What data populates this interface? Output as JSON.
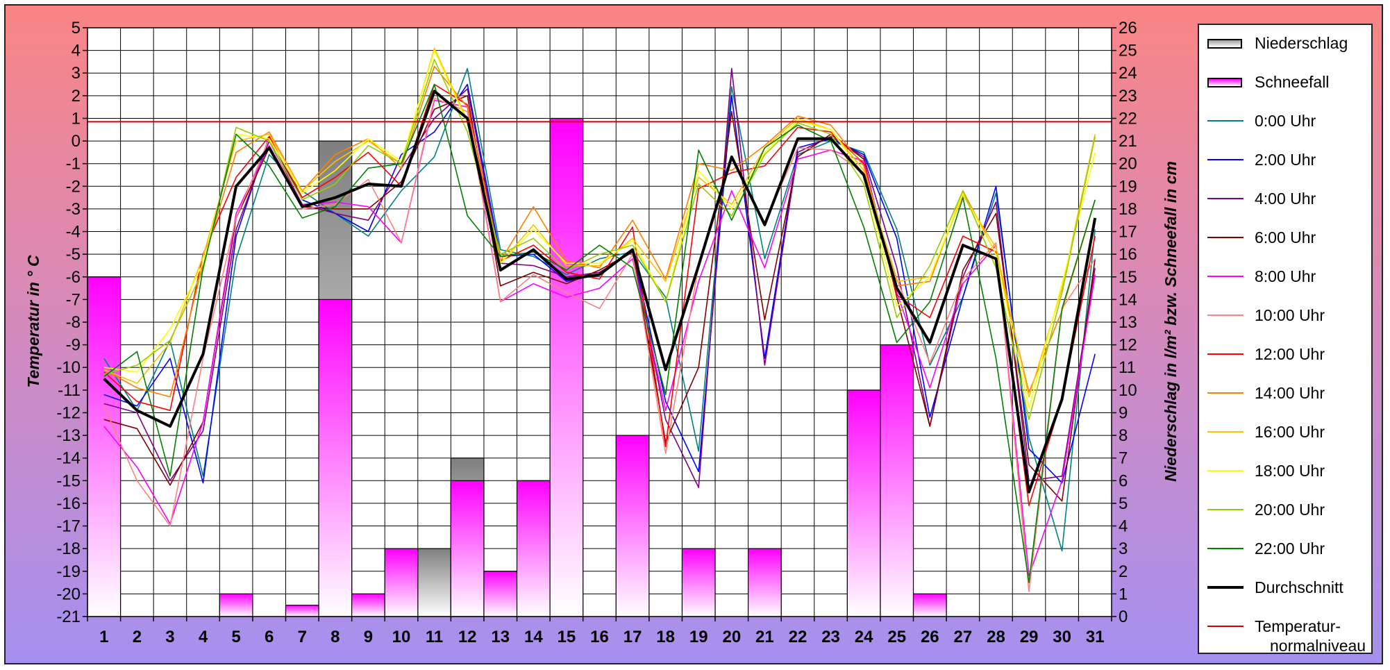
{
  "chart_data": {
    "type": "bar+line",
    "xlabel": "",
    "x": [
      1,
      2,
      3,
      4,
      5,
      6,
      7,
      8,
      9,
      10,
      11,
      12,
      13,
      14,
      15,
      16,
      17,
      18,
      19,
      20,
      21,
      22,
      23,
      24,
      25,
      26,
      27,
      28,
      29,
      30,
      31
    ],
    "x_tick_labels": [
      "1",
      "2",
      "3",
      "4",
      "5",
      "6",
      "7",
      "8",
      "9",
      "10",
      "11",
      "12",
      "13",
      "14",
      "15",
      "16",
      "17",
      "18",
      "19",
      "20",
      "21",
      "22",
      "23",
      "24",
      "25",
      "26",
      "27",
      "28",
      "29",
      "30",
      "31"
    ],
    "y_left": {
      "label": "Temperatur in ° C",
      "lim": [
        -21,
        5
      ],
      "tick_labels": [
        "5",
        "4",
        "3",
        "2",
        "1",
        "0",
        "-1",
        "-2",
        "-3",
        "-4",
        "-5",
        "-6",
        "-7",
        "-8",
        "-9",
        "-10",
        "-11",
        "-12",
        "-13",
        "-14",
        "-15",
        "-16",
        "-17",
        "-18",
        "-19",
        "-20",
        "-21"
      ]
    },
    "y_right": {
      "label": "Niederschlag in l/m² bzw. Schneefall in cm",
      "lim": [
        0,
        26
      ],
      "tick_labels": [
        "26",
        "25",
        "24",
        "23",
        "22",
        "21",
        "20",
        "19",
        "18",
        "17",
        "16",
        "15",
        "14",
        "13",
        "12",
        "11",
        "10",
        "9",
        "8",
        "7",
        "6",
        "5",
        "4",
        "3",
        "2",
        "1",
        "0"
      ]
    },
    "grid": true,
    "legend_position": "right",
    "bars": [
      {
        "name": "Niederschlag",
        "axis": "right",
        "color_top": "#7f7f7f",
        "color_bottom": "#ffffff",
        "values": [
          15,
          0,
          0,
          0,
          1,
          0,
          0.5,
          21,
          1,
          3,
          3,
          7,
          2,
          6,
          22,
          0,
          8,
          0,
          3,
          0,
          3,
          0,
          0,
          10,
          12,
          1,
          0,
          0,
          0,
          0,
          0
        ]
      },
      {
        "name": "Schneefall",
        "axis": "right",
        "color_top": "#ff00ff",
        "color_bottom": "#ffffff",
        "values": [
          15,
          0,
          0,
          0,
          1,
          0,
          0.5,
          14,
          1,
          3,
          0,
          6,
          2,
          6,
          22,
          0,
          8,
          0,
          3,
          0,
          3,
          0,
          0,
          10,
          12,
          1,
          0,
          0,
          0,
          0,
          0
        ]
      }
    ],
    "series": [
      {
        "name": "0:00 Uhr",
        "color": "#008080",
        "width": 1.6,
        "values": [
          -9.6,
          -11.9,
          -8.8,
          -14.8,
          -5.2,
          -0.6,
          -2.2,
          -3.2,
          -4.2,
          -2.2,
          -0.7,
          3.2,
          -4.8,
          -5.1,
          -5.9,
          -5.2,
          -4.9,
          -6.9,
          -13.7,
          2.4,
          -5.2,
          -0.6,
          0.0,
          -0.5,
          -3.9,
          -9.9,
          -6.9,
          -2.3,
          -13.1,
          -18.1,
          -3.9
        ]
      },
      {
        "name": "2:00 Uhr",
        "color": "#0000ff",
        "width": 1.6,
        "values": [
          -11.2,
          -11.7,
          -9.6,
          -15.1,
          -4.2,
          0.2,
          -2.6,
          -3.2,
          -4.0,
          -0.6,
          0.4,
          2.5,
          -5.1,
          -5.0,
          -6.2,
          -5.9,
          -4.8,
          -11.5,
          -14.6,
          2.0,
          -9.6,
          -0.3,
          0.1,
          -0.6,
          -4.3,
          -12.2,
          -6.9,
          -2.0,
          -13.6,
          -15.1,
          -9.4
        ]
      },
      {
        "name": "4:00 Uhr",
        "color": "#800080",
        "width": 1.6,
        "values": [
          -11.6,
          -12.0,
          -15.0,
          -12.8,
          -3.9,
          0.0,
          -2.8,
          -3.2,
          -3.5,
          -1.2,
          1.0,
          2.3,
          -5.4,
          -5.5,
          -6.0,
          -5.8,
          -4.9,
          -12.3,
          -15.3,
          3.2,
          -9.9,
          -0.5,
          0.2,
          -0.7,
          -5.6,
          -12.6,
          -6.0,
          -2.7,
          -15.0,
          -14.8,
          -5.6
        ]
      },
      {
        "name": "6:00 Uhr",
        "color": "#800000",
        "width": 1.6,
        "values": [
          -12.3,
          -12.7,
          -15.2,
          -12.4,
          -3.4,
          -0.3,
          -2.9,
          -3.0,
          -3.0,
          -1.8,
          1.4,
          2.0,
          -6.4,
          -5.8,
          -6.3,
          -5.7,
          -4.9,
          -13.3,
          -10.0,
          1.3,
          -7.9,
          -0.7,
          0.3,
          -0.8,
          -6.9,
          -12.6,
          -5.7,
          -3.2,
          -14.3,
          -15.9,
          -5.2
        ]
      },
      {
        "name": "8:00 Uhr",
        "color": "#ff00ff",
        "width": 1.6,
        "values": [
          -12.6,
          -14.4,
          -16.9,
          -12.4,
          -3.2,
          -0.2,
          -2.8,
          -2.7,
          -2.9,
          -4.5,
          1.8,
          1.5,
          -7.1,
          -6.3,
          -6.9,
          -6.5,
          -5.2,
          -11.9,
          -6.2,
          -2.2,
          -5.6,
          -0.8,
          -0.4,
          -0.9,
          -6.7,
          -10.9,
          -6.3,
          -4.6,
          -19.2,
          -15.0,
          -5.9
        ]
      },
      {
        "name": "10:00 Uhr",
        "color": "#ff8080",
        "width": 1.6,
        "values": [
          -11.7,
          -15.0,
          -17.0,
          -9.6,
          -3.4,
          0.1,
          -3.0,
          -2.8,
          -1.7,
          -4.5,
          1.9,
          1.3,
          -7.1,
          -5.9,
          -6.7,
          -7.4,
          -5.0,
          -13.8,
          -5.5,
          -0.8,
          -3.6,
          -0.3,
          -0.4,
          -1.4,
          -6.1,
          -9.8,
          -6.1,
          -4.5,
          -19.9,
          -7.4,
          -5.2
        ]
      },
      {
        "name": "12:00 Uhr",
        "color": "#ff0000",
        "width": 1.6,
        "values": [
          -10.2,
          -11.5,
          -11.9,
          -5.0,
          -1.6,
          0.2,
          -2.5,
          -1.6,
          -0.5,
          -2.0,
          2.5,
          1.6,
          -5.3,
          -4.6,
          -5.8,
          -6.1,
          -3.8,
          -13.5,
          -2.1,
          -1.4,
          -1.1,
          0.6,
          0.4,
          -1.0,
          -6.8,
          -7.8,
          -4.2,
          -4.9,
          -16.1,
          -11.4,
          -4.2
        ]
      },
      {
        "name": "14:00 Uhr",
        "color": "#ff8000",
        "width": 1.6,
        "values": [
          -10.1,
          -10.9,
          -11.3,
          -5.4,
          -0.5,
          0.4,
          -2.2,
          -0.6,
          0.1,
          -1.2,
          3.3,
          1.5,
          -5.3,
          -2.9,
          -5.3,
          -5.6,
          -3.5,
          -6.1,
          -1.0,
          -1.3,
          -0.2,
          1.1,
          0.7,
          -1.1,
          -6.4,
          -6.2,
          -2.2,
          -5.0,
          -11.1,
          -7.5,
          -2.6
        ]
      },
      {
        "name": "16:00 Uhr",
        "color": "#ffc000",
        "width": 1.6,
        "values": [
          -10.1,
          -10.7,
          -8.9,
          -5.1,
          0.0,
          0.3,
          -2.2,
          -0.9,
          0.0,
          -1.0,
          4.1,
          0.9,
          -5.4,
          -3.7,
          -5.5,
          -5.5,
          -4.3,
          -6.2,
          -1.6,
          -2.8,
          -0.3,
          1.0,
          0.5,
          -1.3,
          -6.2,
          -6.0,
          -2.4,
          -4.7,
          -11.3,
          -6.5,
          0.3
        ]
      },
      {
        "name": "18:00 Uhr",
        "color": "#ffff00",
        "width": 1.6,
        "values": [
          -10.0,
          -10.2,
          -8.3,
          -5.4,
          0.3,
          0.1,
          -2.3,
          -1.3,
          0.1,
          -0.9,
          4.0,
          0.8,
          -5.4,
          -3.9,
          -5.4,
          -5.4,
          -4.4,
          -7.1,
          -1.3,
          -3.0,
          -0.5,
          0.9,
          0.5,
          -1.5,
          -7.3,
          -6.0,
          -2.3,
          -5.0,
          -11.8,
          -6.3,
          -0.5
        ]
      },
      {
        "name": "20:00 Uhr",
        "color": "#99cc00",
        "width": 1.6,
        "values": [
          -10.3,
          -9.9,
          -8.8,
          -5.7,
          0.6,
          0.0,
          -2.6,
          -1.9,
          -0.2,
          -1.0,
          3.6,
          0.4,
          -5.0,
          -4.3,
          -5.7,
          -5.0,
          -4.6,
          -7.1,
          -1.9,
          -3.3,
          -0.6,
          0.8,
          0.3,
          -1.9,
          -7.8,
          -5.5,
          -2.2,
          -5.6,
          -12.3,
          -6.7,
          0.2
        ]
      },
      {
        "name": "22:00 Uhr",
        "color": "#008000",
        "width": 1.6,
        "values": [
          -10.4,
          -9.3,
          -14.8,
          -5.6,
          0.3,
          -1.1,
          -3.4,
          -2.9,
          -1.2,
          -1.0,
          2.5,
          -3.3,
          -5.1,
          -4.9,
          -5.7,
          -4.6,
          -5.6,
          -11.2,
          -0.4,
          -3.5,
          -0.3,
          0.7,
          0.0,
          -3.8,
          -8.9,
          -7.1,
          -2.5,
          -9.6,
          -19.5,
          -7.4,
          -2.6
        ]
      },
      {
        "name": "Durchschnitt",
        "color": "#000000",
        "width": 4,
        "values": [
          -10.5,
          -11.9,
          -12.6,
          -9.4,
          -2.0,
          -0.3,
          -2.9,
          -2.5,
          -1.9,
          -2.0,
          2.2,
          1.0,
          -5.7,
          -4.8,
          -6.1,
          -5.9,
          -4.8,
          -10.1,
          -5.5,
          -0.7,
          -3.7,
          0.1,
          0.1,
          -1.5,
          -6.5,
          -8.9,
          -4.6,
          -5.2,
          -15.5,
          -11.4,
          -3.4
        ]
      },
      {
        "name": "Temperatur-normalniveau",
        "color": "#cc0000",
        "width": 2,
        "constant": 0.85
      }
    ]
  },
  "legend": {
    "items": [
      {
        "label": "Niederschlag",
        "kind": "bar",
        "color": "#a0a0a0"
      },
      {
        "label": "Schneefall",
        "kind": "bar",
        "color": "#ff00ff"
      },
      {
        "label": "0:00 Uhr",
        "kind": "line",
        "color": "#008080"
      },
      {
        "label": "2:00 Uhr",
        "kind": "line",
        "color": "#0000ff"
      },
      {
        "label": "4:00 Uhr",
        "kind": "line",
        "color": "#800080"
      },
      {
        "label": "6:00 Uhr",
        "kind": "line",
        "color": "#800000"
      },
      {
        "label": "8:00 Uhr",
        "kind": "line",
        "color": "#ff00ff"
      },
      {
        "label": "10:00 Uhr",
        "kind": "line",
        "color": "#ff8080"
      },
      {
        "label": "12:00 Uhr",
        "kind": "line",
        "color": "#ff0000"
      },
      {
        "label": "14:00 Uhr",
        "kind": "line",
        "color": "#ff8000"
      },
      {
        "label": "16:00 Uhr",
        "kind": "line",
        "color": "#ffc000"
      },
      {
        "label": "18:00 Uhr",
        "kind": "line",
        "color": "#ffff00"
      },
      {
        "label": "20:00 Uhr",
        "kind": "line",
        "color": "#99cc00"
      },
      {
        "label": "22:00 Uhr",
        "kind": "line",
        "color": "#008000"
      },
      {
        "label": "Durchschnitt",
        "kind": "line-thick",
        "color": "#000000"
      },
      {
        "label": "Temperatur-",
        "label2": "normalniveau",
        "kind": "line",
        "color": "#cc0000"
      }
    ]
  }
}
